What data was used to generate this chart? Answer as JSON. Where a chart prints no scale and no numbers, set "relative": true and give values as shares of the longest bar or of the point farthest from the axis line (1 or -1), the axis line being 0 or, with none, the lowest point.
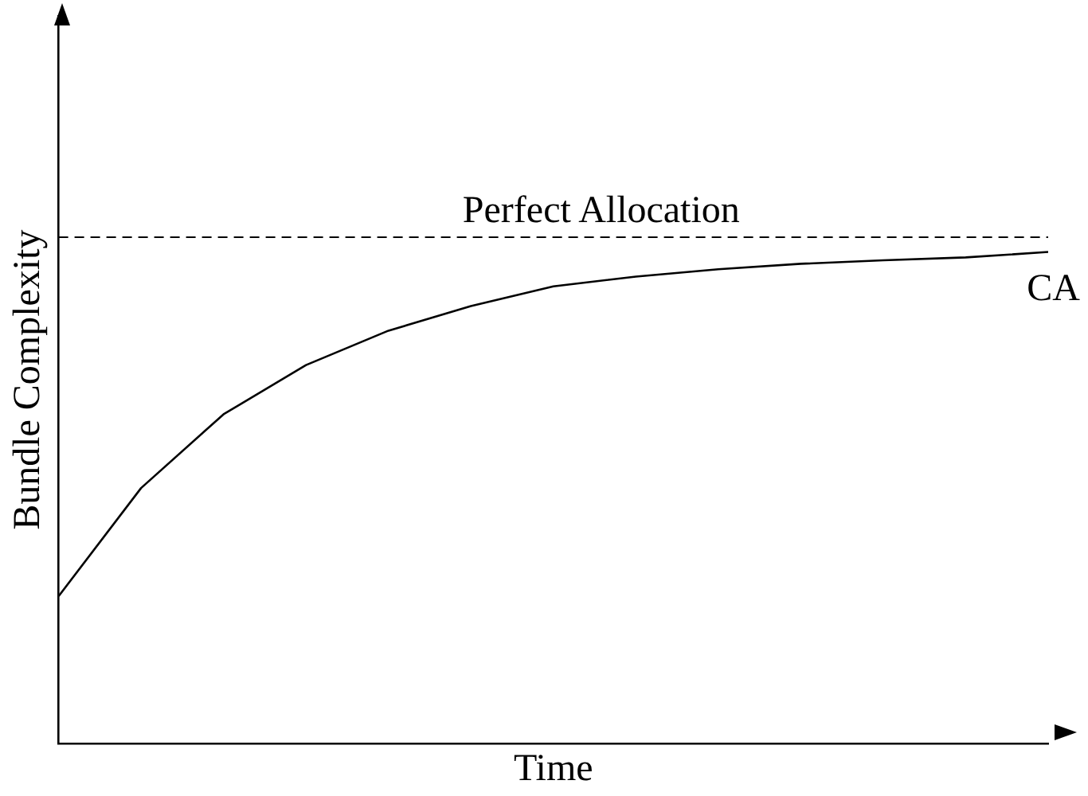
{
  "chart_data": {
    "type": "line",
    "relative": true,
    "xlabel": "Time",
    "ylabel": "Bundle Complexity",
    "categories": [
      null,
      null,
      null,
      null,
      null,
      null,
      null,
      null,
      null,
      null,
      null,
      null,
      null
    ],
    "series": [
      {
        "name": "CA",
        "color": "#000000",
        "values": [
          0.3,
          0.52,
          0.67,
          0.77,
          0.84,
          0.89,
          0.93,
          0.95,
          0.965,
          0.976,
          0.983,
          0.989,
          1.0
        ]
      }
    ],
    "ref_lines": [
      {
        "axis": "y",
        "value": 1.03,
        "label": "Perfect Allocation",
        "line_style": "dashed",
        "color": "#000000"
      }
    ],
    "grid": false,
    "legend": false,
    "marker": "none",
    "line_style": "solid"
  }
}
